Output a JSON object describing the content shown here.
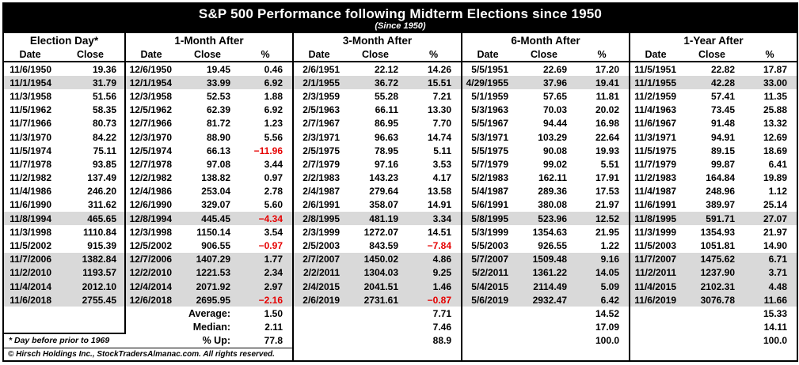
{
  "title": "S&P 500 Performance following Midterm Elections since 1950",
  "subtitle": "(Since 1950)",
  "footnote": "* Day before prior to 1969",
  "copyright": "© Hirsch Holdings Inc., StockTradersAlmanac.com. All rights reserved.",
  "colors": {
    "header_bg": "#000000",
    "row_shade": "#d9d9d9",
    "negative": "#e60000"
  },
  "chart_data": {
    "type": "table",
    "title": "S&P 500 Performance following Midterm Elections since 1950",
    "column_groups": [
      {
        "label": "Election Day*",
        "cols": [
          "Date",
          "Close"
        ]
      },
      {
        "label": "1-Month After",
        "cols": [
          "Date",
          "Close",
          "%"
        ]
      },
      {
        "label": "3-Month After",
        "cols": [
          "Date",
          "Close",
          "%"
        ]
      },
      {
        "label": "6-Month After",
        "cols": [
          "Date",
          "Close",
          "%"
        ]
      },
      {
        "label": "1-Year After",
        "cols": [
          "Date",
          "Close",
          "%"
        ]
      }
    ],
    "rows": [
      {
        "shaded": false,
        "cells": [
          "11/6/1950",
          "19.36",
          "12/6/1950",
          "19.45",
          "0.46",
          "2/6/1951",
          "22.12",
          "14.26",
          "5/5/1951",
          "22.69",
          "17.20",
          "11/5/1951",
          "22.82",
          "17.87"
        ]
      },
      {
        "shaded": true,
        "cells": [
          "11/1/1954",
          "31.79",
          "12/1/1954",
          "33.99",
          "6.92",
          "2/1/1955",
          "36.72",
          "15.51",
          "4/29/1955",
          "37.96",
          "19.41",
          "11/1/1955",
          "42.28",
          "33.00"
        ]
      },
      {
        "shaded": false,
        "cells": [
          "11/3/1958",
          "51.56",
          "12/3/1958",
          "52.53",
          "1.88",
          "2/3/1959",
          "55.28",
          "7.21",
          "5/1/1959",
          "57.65",
          "11.81",
          "11/2/1959",
          "57.41",
          "11.35"
        ]
      },
      {
        "shaded": false,
        "cells": [
          "11/5/1962",
          "58.35",
          "12/5/1962",
          "62.39",
          "6.92",
          "2/5/1963",
          "66.11",
          "13.30",
          "5/3/1963",
          "70.03",
          "20.02",
          "11/4/1963",
          "73.45",
          "25.88"
        ]
      },
      {
        "shaded": false,
        "cells": [
          "11/7/1966",
          "80.73",
          "12/7/1966",
          "81.72",
          "1.23",
          "2/7/1967",
          "86.95",
          "7.70",
          "5/5/1967",
          "94.44",
          "16.98",
          "11/6/1967",
          "91.48",
          "13.32"
        ]
      },
      {
        "shaded": false,
        "cells": [
          "11/3/1970",
          "84.22",
          "12/3/1970",
          "88.90",
          "5.56",
          "2/3/1971",
          "96.63",
          "14.74",
          "5/3/1971",
          "103.29",
          "22.64",
          "11/3/1971",
          "94.91",
          "12.69"
        ]
      },
      {
        "shaded": false,
        "cells": [
          "11/5/1974",
          "75.11",
          "12/5/1974",
          "66.13",
          "-11.96",
          "2/5/1975",
          "78.95",
          "5.11",
          "5/5/1975",
          "90.08",
          "19.93",
          "11/5/1975",
          "89.15",
          "18.69"
        ]
      },
      {
        "shaded": false,
        "cells": [
          "11/7/1978",
          "93.85",
          "12/7/1978",
          "97.08",
          "3.44",
          "2/7/1979",
          "97.16",
          "3.53",
          "5/7/1979",
          "99.02",
          "5.51",
          "11/7/1979",
          "99.87",
          "6.41"
        ]
      },
      {
        "shaded": false,
        "cells": [
          "11/2/1982",
          "137.49",
          "12/2/1982",
          "138.82",
          "0.97",
          "2/2/1983",
          "143.23",
          "4.17",
          "5/2/1983",
          "162.11",
          "17.91",
          "11/2/1983",
          "164.84",
          "19.89"
        ]
      },
      {
        "shaded": false,
        "cells": [
          "11/4/1986",
          "246.20",
          "12/4/1986",
          "253.04",
          "2.78",
          "2/4/1987",
          "279.64",
          "13.58",
          "5/4/1987",
          "289.36",
          "17.53",
          "11/4/1987",
          "248.96",
          "1.12"
        ]
      },
      {
        "shaded": false,
        "cells": [
          "11/6/1990",
          "311.62",
          "12/6/1990",
          "329.07",
          "5.60",
          "2/6/1991",
          "358.07",
          "14.91",
          "5/6/1991",
          "380.08",
          "21.97",
          "11/6/1991",
          "389.97",
          "25.14"
        ]
      },
      {
        "shaded": true,
        "cells": [
          "11/8/1994",
          "465.65",
          "12/8/1994",
          "445.45",
          "-4.34",
          "2/8/1995",
          "481.19",
          "3.34",
          "5/8/1995",
          "523.96",
          "12.52",
          "11/8/1995",
          "591.71",
          "27.07"
        ]
      },
      {
        "shaded": false,
        "cells": [
          "11/3/1998",
          "1110.84",
          "12/3/1998",
          "1150.14",
          "3.54",
          "2/3/1999",
          "1272.07",
          "14.51",
          "5/3/1999",
          "1354.63",
          "21.95",
          "11/3/1999",
          "1354.93",
          "21.97"
        ]
      },
      {
        "shaded": false,
        "cells": [
          "11/5/2002",
          "915.39",
          "12/5/2002",
          "906.55",
          "-0.97",
          "2/5/2003",
          "843.59",
          "-7.84",
          "5/5/2003",
          "926.55",
          "1.22",
          "11/5/2003",
          "1051.81",
          "14.90"
        ]
      },
      {
        "shaded": true,
        "cells": [
          "11/7/2006",
          "1382.84",
          "12/7/2006",
          "1407.29",
          "1.77",
          "2/7/2007",
          "1450.02",
          "4.86",
          "5/7/2007",
          "1509.48",
          "9.16",
          "11/7/2007",
          "1475.62",
          "6.71"
        ]
      },
      {
        "shaded": true,
        "cells": [
          "11/2/2010",
          "1193.57",
          "12/2/2010",
          "1221.53",
          "2.34",
          "2/2/2011",
          "1304.03",
          "9.25",
          "5/2/2011",
          "1361.22",
          "14.05",
          "11/2/2011",
          "1237.90",
          "3.71"
        ]
      },
      {
        "shaded": true,
        "cells": [
          "11/4/2014",
          "2012.10",
          "12/4/2014",
          "2071.92",
          "2.97",
          "2/4/2015",
          "2041.51",
          "1.46",
          "5/4/2015",
          "2114.49",
          "5.09",
          "11/4/2015",
          "2102.31",
          "4.48"
        ]
      },
      {
        "shaded": true,
        "cells": [
          "11/6/2018",
          "2755.45",
          "12/6/2018",
          "2695.95",
          "-2.16",
          "2/6/2019",
          "2731.61",
          "-0.87",
          "5/6/2019",
          "2932.47",
          "6.42",
          "11/6/2019",
          "3076.78",
          "11.66"
        ]
      }
    ],
    "summary_rows": [
      {
        "label": "Average:",
        "values": [
          "1.50",
          "7.71",
          "14.52",
          "15.33"
        ]
      },
      {
        "label": "Median:",
        "values": [
          "2.11",
          "7.46",
          "17.09",
          "14.11"
        ]
      },
      {
        "label": "% Up:",
        "values": [
          "77.8",
          "88.9",
          "100.0",
          "100.0"
        ]
      }
    ]
  }
}
